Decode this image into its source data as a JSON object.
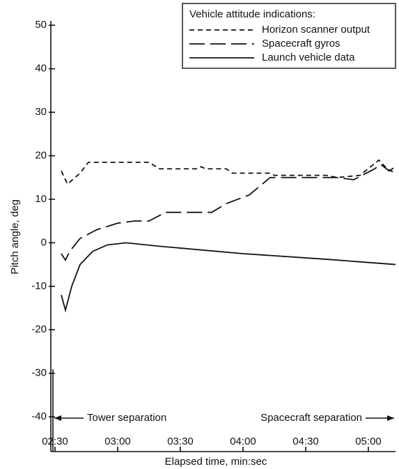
{
  "chart_data": {
    "type": "line",
    "x_label": "Elapsed time, min:sec",
    "y_label": "Pitch angle, deg",
    "legend_title": "Vehicle attitude indications:",
    "xlim": [
      148,
      313
    ],
    "ylim": [
      -48,
      51
    ],
    "xticks": [
      {
        "value": 150,
        "label": "02:30"
      },
      {
        "value": 180,
        "label": "03:00"
      },
      {
        "value": 210,
        "label": "03:30"
      },
      {
        "value": 240,
        "label": "04:00"
      },
      {
        "value": 270,
        "label": "04:30"
      },
      {
        "value": 300,
        "label": "05:00"
      }
    ],
    "yticks": [
      50,
      40,
      30,
      20,
      10,
      0,
      -10,
      -20,
      -30,
      -40
    ],
    "annotations": [
      {
        "text": "Tower separation"
      },
      {
        "text": "Spacecraft separation"
      }
    ],
    "series": [
      {
        "name": "Horizon scanner output",
        "color": "#111",
        "dash": "short",
        "x": [
          153,
          156,
          162,
          166,
          195,
          200,
          218,
          220,
          222,
          232,
          235,
          253,
          255,
          280,
          285,
          296,
          305,
          309,
          313
        ],
        "values": [
          16.5,
          13.5,
          16,
          18.5,
          18.5,
          17,
          17,
          17.5,
          17,
          17,
          16,
          16,
          15.5,
          15.5,
          15,
          15.5,
          19,
          17,
          16
        ]
      },
      {
        "name": "Spacecraft gyros",
        "color": "#111",
        "dash": "long",
        "x": [
          153,
          155,
          157,
          162,
          170,
          180,
          188,
          195,
          203,
          225,
          232,
          243,
          253,
          285,
          293,
          303,
          306,
          310,
          313
        ],
        "values": [
          -2.5,
          -4,
          -2,
          1,
          3,
          4.5,
          5,
          5,
          7,
          7,
          9,
          11,
          15,
          15,
          14.5,
          17,
          18,
          16.5,
          17.5
        ]
      },
      {
        "name": "Launch vehicle data",
        "color": "#111",
        "dash": "solid",
        "x": [
          153,
          155,
          158,
          162,
          168,
          175,
          184,
          200,
          240,
          280,
          313
        ],
        "values": [
          -12,
          -15.5,
          -10,
          -5,
          -2,
          -0.5,
          0,
          -0.8,
          -2.5,
          -3.8,
          -5
        ]
      }
    ]
  }
}
